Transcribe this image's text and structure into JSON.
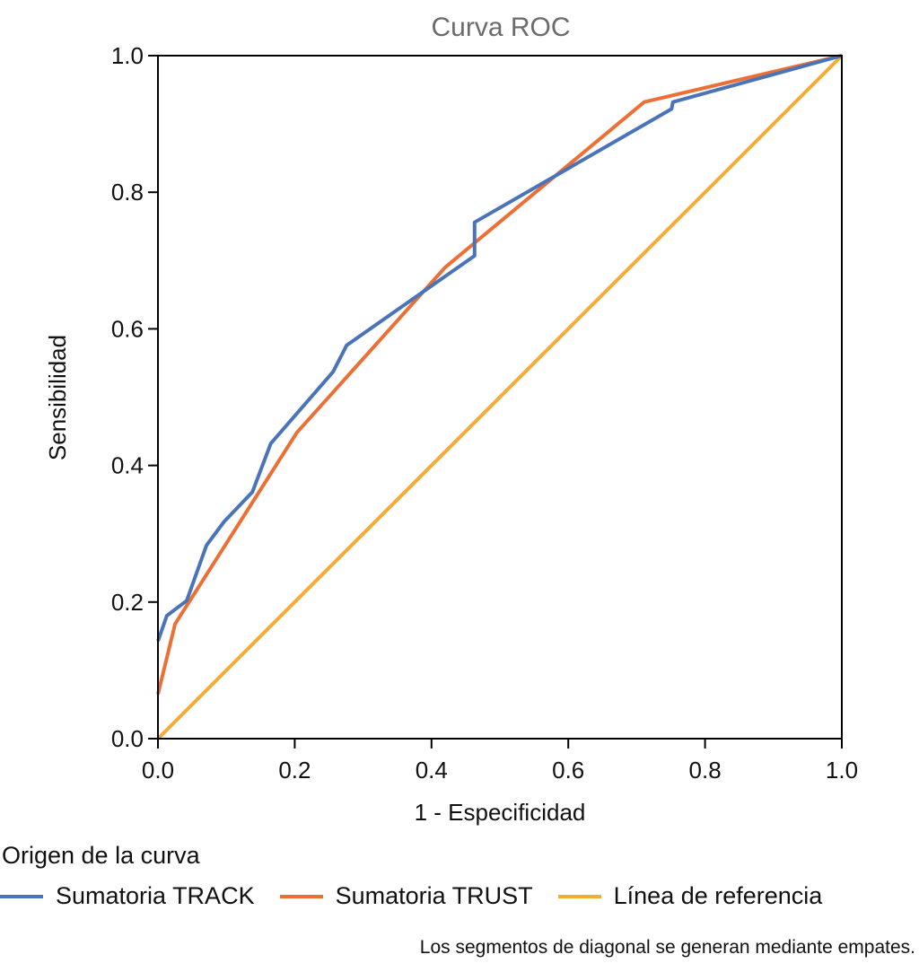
{
  "chart_data": {
    "type": "line",
    "title": "Curva ROC",
    "xlabel": "1 - Especificidad",
    "ylabel": "Sensibilidad",
    "xlim": [
      0,
      1
    ],
    "ylim": [
      0,
      1
    ],
    "x_ticks": [
      "0.0",
      "0.2",
      "0.4",
      "0.6",
      "0.8",
      "1.0"
    ],
    "y_ticks": [
      "0.0",
      "0.2",
      "0.4",
      "0.6",
      "0.8",
      "1.0"
    ],
    "x_tick_values": [
      0,
      0.2,
      0.4,
      0.6,
      0.8,
      1.0
    ],
    "y_tick_values": [
      0,
      0.2,
      0.4,
      0.6,
      0.8,
      1.0
    ],
    "grid": false,
    "legend_title": "Origen de la curva",
    "legend_position": "bottom",
    "series": [
      {
        "name": "Sumatoria TRACK",
        "color": "#4a74b9",
        "x": [
          0.0,
          0.013,
          0.042,
          0.071,
          0.097,
          0.138,
          0.165,
          0.256,
          0.276,
          0.463,
          0.463,
          0.751,
          0.753,
          1.0
        ],
        "y": [
          0.143,
          0.18,
          0.202,
          0.283,
          0.318,
          0.361,
          0.432,
          0.537,
          0.576,
          0.707,
          0.756,
          0.922,
          0.932,
          1.0
        ]
      },
      {
        "name": "Sumatoria TRUST",
        "color": "#ec7035",
        "x": [
          0.0,
          0.025,
          0.203,
          0.42,
          0.711,
          1.0
        ],
        "y": [
          0.065,
          0.168,
          0.448,
          0.69,
          0.932,
          1.0
        ]
      },
      {
        "name": "Línea de referencia",
        "color": "#f5ac35",
        "x": [
          0.0,
          1.0
        ],
        "y": [
          0.0,
          1.0
        ]
      }
    ],
    "footnote": "Los segmentos de diagonal se generan mediante empates."
  }
}
